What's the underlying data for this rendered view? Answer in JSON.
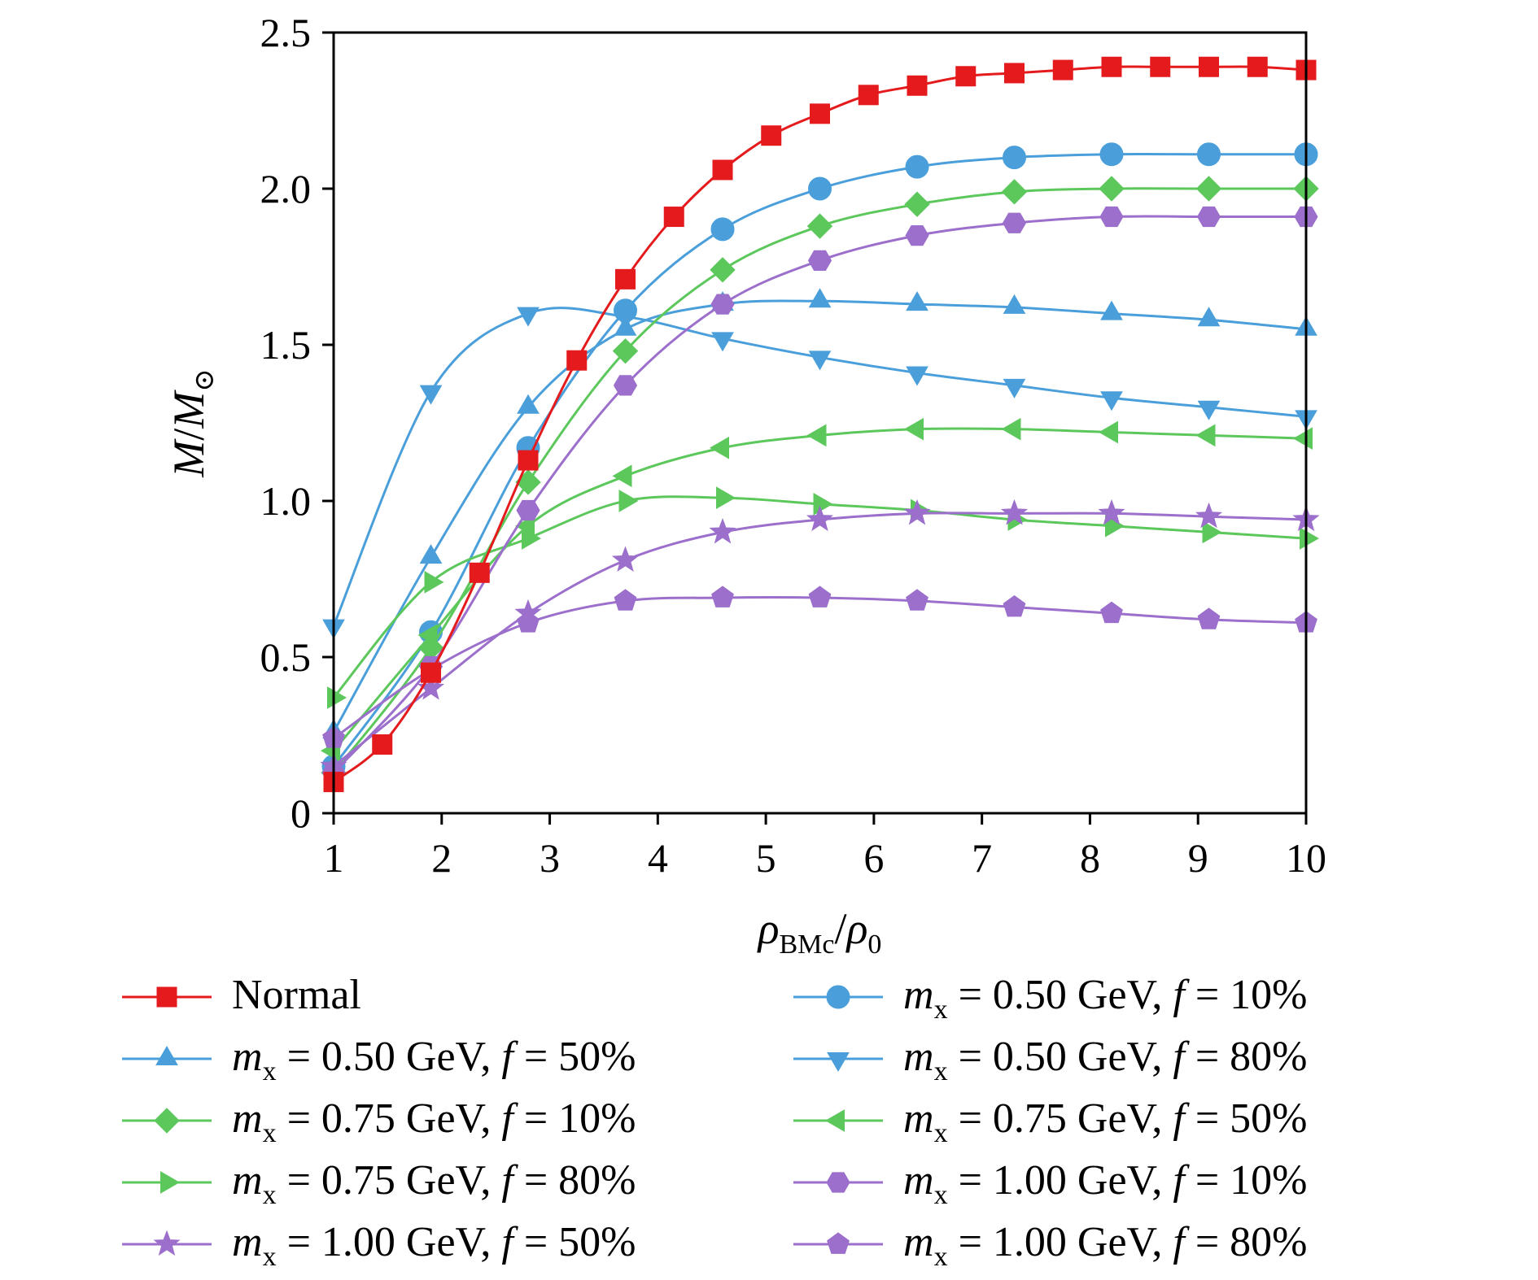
{
  "chart_data": {
    "type": "line",
    "xlabel": {
      "main": "ρ",
      "sub": "BMc",
      "sep": "/",
      "main2": "ρ",
      "sub2": "0"
    },
    "ylabel": {
      "main": "M",
      "sep": "/",
      "main2": "M",
      "sub2": "⊙"
    },
    "xlim": [
      1,
      10
    ],
    "ylim": [
      0,
      2.5
    ],
    "xticks": [
      "1",
      "2",
      "3",
      "4",
      "5",
      "6",
      "7",
      "8",
      "9",
      "10"
    ],
    "yticks": [
      "0",
      "0.5",
      "1.0",
      "1.5",
      "2.0",
      "2.5"
    ],
    "grid": false,
    "legend_position": "bottom",
    "series": [
      {
        "name": "Normal",
        "legend": {
          "plain": "Normal"
        },
        "color": "#e41a1c",
        "marker": "square",
        "x": [
          1,
          1.45,
          1.9,
          2.35,
          2.8,
          3.25,
          3.7,
          4.15,
          4.6,
          5.05,
          5.5,
          5.95,
          6.4,
          6.85,
          7.3,
          7.75,
          8.2,
          8.65,
          9.1,
          9.55,
          10
        ],
        "y": [
          0.1,
          0.22,
          0.45,
          0.77,
          1.13,
          1.45,
          1.71,
          1.91,
          2.06,
          2.17,
          2.24,
          2.3,
          2.33,
          2.36,
          2.37,
          2.38,
          2.39,
          2.39,
          2.39,
          2.39,
          2.38
        ]
      },
      {
        "name": "mx = 0.50 GeV, f = 10%",
        "legend": {
          "m": "m",
          "sub": "x",
          "mid": " = 0.50 GeV, ",
          "f": "f",
          "end": " = 10%"
        },
        "color": "#4a9fdb",
        "marker": "circle",
        "x": [
          1,
          1.9,
          2.8,
          3.7,
          4.6,
          5.5,
          6.4,
          7.3,
          8.2,
          9.1,
          10
        ],
        "y": [
          0.15,
          0.58,
          1.17,
          1.61,
          1.87,
          2.0,
          2.07,
          2.1,
          2.11,
          2.11,
          2.11
        ]
      },
      {
        "name": "mx = 0.50 GeV, f = 50%",
        "legend": {
          "m": "m",
          "sub": "x",
          "mid": " = 0.50 GeV, ",
          "f": "f",
          "end": " = 50%"
        },
        "color": "#4a9fdb",
        "marker": "triangle-up",
        "x": [
          1,
          1.9,
          2.8,
          3.7,
          4.6,
          5.5,
          6.4,
          7.3,
          8.2,
          9.1,
          10
        ],
        "y": [
          0.26,
          0.82,
          1.3,
          1.55,
          1.63,
          1.64,
          1.63,
          1.62,
          1.6,
          1.58,
          1.55
        ]
      },
      {
        "name": "mx = 0.50 GeV, f = 80%",
        "legend": {
          "m": "m",
          "sub": "x",
          "mid": " = 0.50 GeV, ",
          "f": "f",
          "end": " = 80%"
        },
        "color": "#4a9fdb",
        "marker": "triangle-down",
        "x": [
          1,
          1.9,
          2.8,
          3.7,
          4.6,
          5.5,
          6.4,
          7.3,
          8.2,
          9.1,
          10
        ],
        "y": [
          0.6,
          1.35,
          1.6,
          1.59,
          1.52,
          1.46,
          1.41,
          1.37,
          1.33,
          1.3,
          1.27
        ]
      },
      {
        "name": "mx = 0.75 GeV, f = 10%",
        "legend": {
          "m": "m",
          "sub": "x",
          "mid": " = 0.75 GeV, ",
          "f": "f",
          "end": " = 10%"
        },
        "color": "#5cc85c",
        "marker": "diamond",
        "x": [
          1,
          1.9,
          2.8,
          3.7,
          4.6,
          5.5,
          6.4,
          7.3,
          8.2,
          9.1,
          10
        ],
        "y": [
          0.13,
          0.53,
          1.06,
          1.48,
          1.74,
          1.88,
          1.95,
          1.99,
          2.0,
          2.0,
          2.0
        ]
      },
      {
        "name": "mx = 0.75 GeV, f = 50%",
        "legend": {
          "m": "m",
          "sub": "x",
          "mid": " = 0.75 GeV, ",
          "f": "f",
          "end": " = 50%"
        },
        "color": "#5cc85c",
        "marker": "triangle-left",
        "x": [
          1,
          1.9,
          2.8,
          3.7,
          4.6,
          5.5,
          6.4,
          7.3,
          8.2,
          9.1,
          10
        ],
        "y": [
          0.2,
          0.57,
          0.92,
          1.08,
          1.17,
          1.21,
          1.23,
          1.23,
          1.22,
          1.21,
          1.2
        ]
      },
      {
        "name": "mx = 0.75 GeV, f = 80%",
        "legend": {
          "m": "m",
          "sub": "x",
          "mid": " = 0.75 GeV, ",
          "f": "f",
          "end": " = 80%"
        },
        "color": "#5cc85c",
        "marker": "triangle-right",
        "x": [
          1,
          1.9,
          2.8,
          3.7,
          4.6,
          5.5,
          6.4,
          7.3,
          8.2,
          9.1,
          10
        ],
        "y": [
          0.37,
          0.74,
          0.88,
          1.0,
          1.01,
          0.99,
          0.97,
          0.94,
          0.92,
          0.9,
          0.88
        ]
      },
      {
        "name": "mx = 1.00 GeV, f = 10%",
        "legend": {
          "m": "m",
          "sub": "x",
          "mid": " = 1.00 GeV, ",
          "f": "f",
          "end": " = 10%"
        },
        "color": "#9b6fcb",
        "marker": "hexagon",
        "x": [
          1,
          1.9,
          2.8,
          3.7,
          4.6,
          5.5,
          6.4,
          7.3,
          8.2,
          9.1,
          10
        ],
        "y": [
          0.13,
          0.47,
          0.97,
          1.37,
          1.63,
          1.77,
          1.85,
          1.89,
          1.91,
          1.91,
          1.91
        ]
      },
      {
        "name": "mx = 1.00 GeV, f = 50%",
        "legend": {
          "m": "m",
          "sub": "x",
          "mid": " = 1.00 GeV, ",
          "f": "f",
          "end": " = 50%"
        },
        "color": "#9b6fcb",
        "marker": "star",
        "x": [
          1,
          1.9,
          2.8,
          3.7,
          4.6,
          5.5,
          6.4,
          7.3,
          8.2,
          9.1,
          10
        ],
        "y": [
          0.15,
          0.4,
          0.64,
          0.81,
          0.9,
          0.94,
          0.96,
          0.96,
          0.96,
          0.95,
          0.94
        ]
      },
      {
        "name": "mx = 1.00 GeV, f = 80%",
        "legend": {
          "m": "m",
          "sub": "x",
          "mid": " = 1.00 GeV, ",
          "f": "f",
          "end": " = 80%"
        },
        "color": "#9b6fcb",
        "marker": "pentagon",
        "x": [
          1,
          1.9,
          2.8,
          3.7,
          4.6,
          5.5,
          6.4,
          7.3,
          8.2,
          9.1,
          10
        ],
        "y": [
          0.24,
          0.46,
          0.61,
          0.68,
          0.69,
          0.69,
          0.68,
          0.66,
          0.64,
          0.62,
          0.61
        ]
      }
    ]
  }
}
